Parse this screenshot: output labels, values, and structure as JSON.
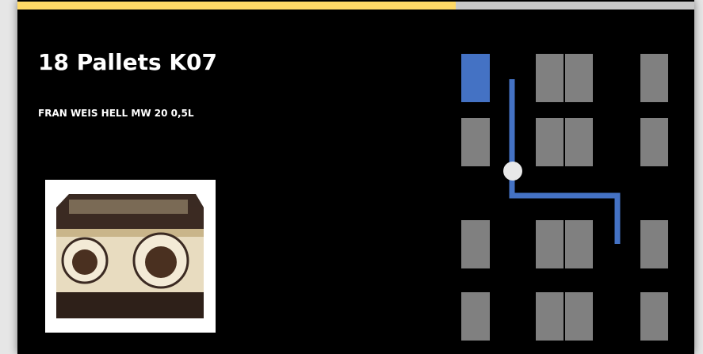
{
  "header": {
    "title": "18 Pallets K07",
    "product": "FRAN WEIS HELL MW 20 0,5L"
  }
}
